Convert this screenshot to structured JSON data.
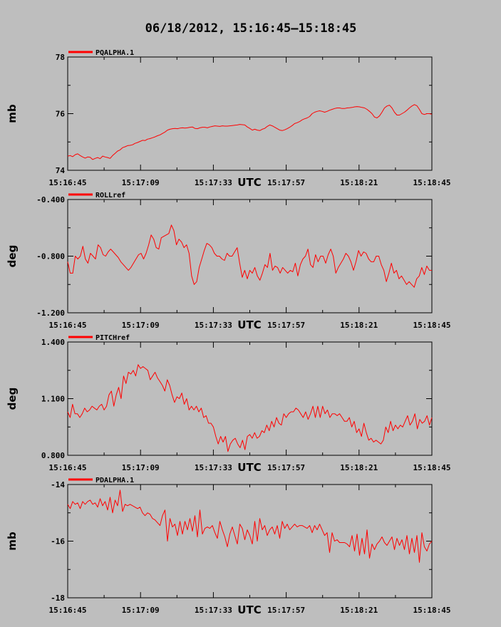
{
  "figure": {
    "title": "06/18/2012, 15:16:45–15:18:45",
    "colors": {
      "background": "#bebebe",
      "axes": "#000000",
      "series": "#ff0000"
    }
  },
  "chart_data": [
    {
      "type": "line",
      "legend": "PQALPHA.1",
      "ylabel": "mb",
      "xlabel": "UTC",
      "xlim": [
        "15:16:45",
        "15:18:45"
      ],
      "xticks": [
        "15:16:45",
        "15:17:09",
        "15:17:33",
        "15:17:57",
        "15:18:21",
        "15:18:45"
      ],
      "ylim": [
        74,
        78
      ],
      "yticks": [
        "74",
        "76",
        "78"
      ],
      "grid": false,
      "values": [
        74.5,
        74.52,
        74.48,
        74.55,
        74.58,
        74.52,
        74.47,
        74.43,
        74.47,
        74.46,
        74.38,
        74.42,
        74.45,
        74.41,
        74.5,
        74.47,
        74.45,
        74.42,
        74.52,
        74.6,
        74.68,
        74.72,
        74.8,
        74.83,
        74.87,
        74.88,
        74.9,
        74.95,
        74.98,
        75.02,
        75.06,
        75.05,
        75.1,
        75.12,
        75.15,
        75.18,
        75.22,
        75.25,
        75.3,
        75.35,
        75.42,
        75.45,
        75.47,
        75.48,
        75.47,
        75.49,
        75.5,
        75.49,
        75.5,
        75.52,
        75.53,
        75.48,
        75.47,
        75.5,
        75.52,
        75.52,
        75.5,
        75.53,
        75.55,
        75.57,
        75.56,
        75.55,
        75.57,
        75.56,
        75.56,
        75.57,
        75.58,
        75.59,
        75.6,
        75.62,
        75.61,
        75.6,
        75.53,
        75.48,
        75.42,
        75.45,
        75.42,
        75.4,
        75.45,
        75.48,
        75.55,
        75.6,
        75.57,
        75.52,
        75.47,
        75.42,
        75.4,
        75.43,
        75.47,
        75.52,
        75.58,
        75.65,
        75.68,
        75.72,
        75.78,
        75.82,
        75.85,
        75.9,
        76.0,
        76.05,
        76.08,
        76.1,
        76.08,
        76.05,
        76.08,
        76.12,
        76.15,
        76.18,
        76.2,
        76.2,
        76.18,
        76.18,
        76.2,
        76.21,
        76.22,
        76.24,
        76.25,
        76.24,
        76.22,
        76.2,
        76.15,
        76.08,
        76.0,
        75.88,
        75.85,
        75.92,
        76.05,
        76.2,
        76.27,
        76.3,
        76.2,
        76.05,
        75.95,
        75.95,
        76.0,
        76.05,
        76.12,
        76.2,
        76.27,
        76.32,
        76.28,
        76.15,
        76.0,
        75.97,
        76.0,
        76.0,
        75.98
      ]
    },
    {
      "type": "line",
      "legend": "ROLLref",
      "ylabel": "deg",
      "xlabel": "UTC",
      "xlim": [
        "15:16:45",
        "15:18:45"
      ],
      "xticks": [
        "15:16:45",
        "15:17:09",
        "15:17:33",
        "15:17:57",
        "15:18:21",
        "15:18:45"
      ],
      "ylim": [
        -1.2,
        -0.4
      ],
      "yticks": [
        "-0.400",
        "-0.800",
        "-1.200"
      ],
      "grid": false,
      "values": [
        -0.84,
        -0.92,
        -0.92,
        -0.8,
        -0.82,
        -0.8,
        -0.73,
        -0.82,
        -0.85,
        -0.78,
        -0.8,
        -0.82,
        -0.72,
        -0.74,
        -0.79,
        -0.8,
        -0.77,
        -0.75,
        -0.77,
        -0.79,
        -0.81,
        -0.84,
        -0.86,
        -0.88,
        -0.9,
        -0.88,
        -0.85,
        -0.82,
        -0.79,
        -0.78,
        -0.82,
        -0.78,
        -0.72,
        -0.65,
        -0.68,
        -0.74,
        -0.75,
        -0.67,
        -0.66,
        -0.65,
        -0.64,
        -0.58,
        -0.62,
        -0.72,
        -0.68,
        -0.7,
        -0.74,
        -0.72,
        -0.78,
        -0.94,
        -1.0,
        -0.98,
        -0.88,
        -0.82,
        -0.76,
        -0.71,
        -0.72,
        -0.74,
        -0.78,
        -0.8,
        -0.8,
        -0.82,
        -0.83,
        -0.78,
        -0.8,
        -0.8,
        -0.77,
        -0.74,
        -0.85,
        -0.95,
        -0.9,
        -0.96,
        -0.9,
        -0.92,
        -0.88,
        -0.94,
        -0.97,
        -0.92,
        -0.86,
        -0.88,
        -0.78,
        -0.9,
        -0.87,
        -0.88,
        -0.92,
        -0.88,
        -0.9,
        -0.92,
        -0.9,
        -0.91,
        -0.85,
        -0.94,
        -0.86,
        -0.82,
        -0.8,
        -0.75,
        -0.86,
        -0.88,
        -0.79,
        -0.84,
        -0.8,
        -0.8,
        -0.85,
        -0.79,
        -0.75,
        -0.8,
        -0.92,
        -0.88,
        -0.85,
        -0.82,
        -0.78,
        -0.8,
        -0.84,
        -0.9,
        -0.84,
        -0.76,
        -0.8,
        -0.77,
        -0.78,
        -0.82,
        -0.84,
        -0.84,
        -0.8,
        -0.8,
        -0.86,
        -0.9,
        -0.98,
        -0.92,
        -0.85,
        -0.92,
        -0.9,
        -0.96,
        -0.94,
        -0.97,
        -1.0,
        -0.98,
        -1.0,
        -1.02,
        -0.96,
        -0.94,
        -0.88,
        -0.93,
        -0.87,
        -0.9,
        -0.9
      ]
    },
    {
      "type": "line",
      "legend": "PITCHref",
      "ylabel": "deg",
      "xlabel": "UTC",
      "xlim": [
        "15:16:45",
        "15:18:45"
      ],
      "xticks": [
        "15:16:45",
        "15:17:09",
        "15:17:33",
        "15:17:57",
        "15:18:21",
        "15:18:45"
      ],
      "ylim": [
        0.8,
        1.4
      ],
      "yticks": [
        "1.400",
        "1.100",
        "0.800"
      ],
      "grid": false,
      "values": [
        1.03,
        1.0,
        1.07,
        1.02,
        1.02,
        1.0,
        1.02,
        1.05,
        1.03,
        1.04,
        1.06,
        1.05,
        1.04,
        1.06,
        1.07,
        1.04,
        1.06,
        1.12,
        1.14,
        1.06,
        1.12,
        1.16,
        1.1,
        1.22,
        1.18,
        1.24,
        1.23,
        1.25,
        1.22,
        1.28,
        1.26,
        1.27,
        1.26,
        1.25,
        1.2,
        1.22,
        1.24,
        1.21,
        1.19,
        1.17,
        1.14,
        1.2,
        1.17,
        1.12,
        1.08,
        1.11,
        1.1,
        1.13,
        1.07,
        1.1,
        1.04,
        1.06,
        1.04,
        1.06,
        1.03,
        1.05,
        1.0,
        1.01,
        0.97,
        0.97,
        0.95,
        0.9,
        0.86,
        0.9,
        0.87,
        0.9,
        0.82,
        0.86,
        0.88,
        0.89,
        0.86,
        0.84,
        0.88,
        0.83,
        0.9,
        0.91,
        0.89,
        0.92,
        0.89,
        0.9,
        0.93,
        0.92,
        0.96,
        0.93,
        0.98,
        0.95,
        1.0,
        0.97,
        0.96,
        1.02,
        1.0,
        1.02,
        1.03,
        1.03,
        1.05,
        1.04,
        1.02,
        1.0,
        1.03,
        0.99,
        1.02,
        1.06,
        1.0,
        1.06,
        1.0,
        1.06,
        1.02,
        1.04,
        1.0,
        1.02,
        1.02,
        1.01,
        1.02,
        1.0,
        0.98,
        0.98,
        1.0,
        0.95,
        0.98,
        0.92,
        0.94,
        0.9,
        0.97,
        0.92,
        0.88,
        0.89,
        0.87,
        0.88,
        0.87,
        0.86,
        0.88,
        0.95,
        0.92,
        0.98,
        0.93,
        0.96,
        0.94,
        0.96,
        0.95,
        0.98,
        1.01,
        0.96,
        0.98,
        1.02,
        0.94,
        0.99,
        0.97,
        0.98,
        1.01,
        0.96,
        1.0
      ]
    },
    {
      "type": "line",
      "legend": "PDALPHA.1",
      "ylabel": "mb",
      "xlabel": "UTC",
      "xlim": [
        "15:16:45",
        "15:18:45"
      ],
      "xticks": [
        "15:16:45",
        "15:17:09",
        "15:17:33",
        "15:17:57",
        "15:18:21",
        "15:18:45"
      ],
      "ylim": [
        -18,
        -14
      ],
      "yticks": [
        "-14",
        "-16",
        "-18"
      ],
      "grid": false,
      "values": [
        -14.7,
        -14.85,
        -14.6,
        -14.7,
        -14.65,
        -14.85,
        -14.6,
        -14.7,
        -14.6,
        -14.55,
        -14.7,
        -14.65,
        -14.8,
        -14.5,
        -14.75,
        -14.6,
        -14.9,
        -14.45,
        -15.0,
        -14.55,
        -14.75,
        -14.2,
        -14.95,
        -14.7,
        -14.75,
        -14.7,
        -14.75,
        -14.8,
        -14.85,
        -14.8,
        -15.0,
        -15.1,
        -15.0,
        -15.05,
        -15.2,
        -15.25,
        -15.35,
        -15.45,
        -15.1,
        -14.9,
        -16.0,
        -15.2,
        -15.5,
        -15.4,
        -15.8,
        -15.3,
        -15.75,
        -15.3,
        -15.6,
        -15.2,
        -15.65,
        -15.1,
        -15.85,
        -14.9,
        -15.75,
        -15.55,
        -15.5,
        -15.55,
        -15.45,
        -15.7,
        -15.9,
        -15.3,
        -15.6,
        -15.85,
        -16.2,
        -15.75,
        -15.5,
        -15.8,
        -16.1,
        -15.4,
        -15.55,
        -15.95,
        -15.6,
        -15.8,
        -16.1,
        -15.3,
        -16.0,
        -15.2,
        -15.6,
        -15.45,
        -15.8,
        -15.6,
        -15.5,
        -15.75,
        -15.45,
        -15.9,
        -15.3,
        -15.55,
        -15.4,
        -15.6,
        -15.5,
        -15.4,
        -15.5,
        -15.45,
        -15.45,
        -15.5,
        -15.55,
        -15.45,
        -15.7,
        -15.45,
        -15.6,
        -15.4,
        -15.6,
        -15.8,
        -15.7,
        -16.4,
        -15.7,
        -16.0,
        -15.95,
        -16.05,
        -16.05,
        -16.05,
        -16.1,
        -16.2,
        -15.8,
        -16.35,
        -15.75,
        -16.5,
        -15.9,
        -16.45,
        -15.6,
        -16.6,
        -16.1,
        -16.3,
        -16.1,
        -16.0,
        -15.85,
        -16.05,
        -16.15,
        -16.0,
        -15.85,
        -16.3,
        -15.9,
        -16.15,
        -15.95,
        -16.3,
        -15.8,
        -16.45,
        -15.9,
        -16.4,
        -15.8,
        -16.75,
        -15.7,
        -16.2,
        -16.35,
        -16.1,
        -16.0
      ]
    }
  ]
}
